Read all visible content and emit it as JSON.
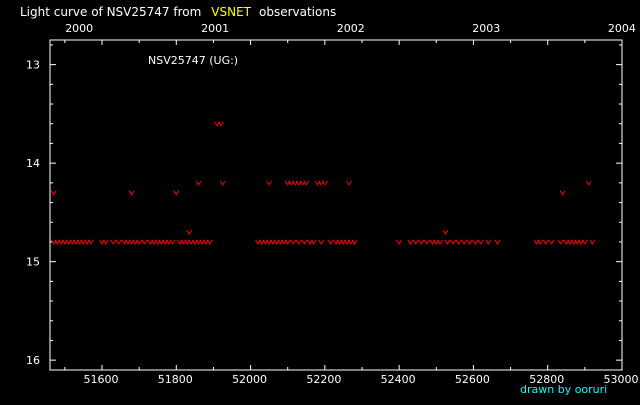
{
  "title": {
    "prefix": "Light curve of NSV25747 from",
    "source": "VSNET",
    "suffix": "observations",
    "source_color": "#ffff00"
  },
  "credit": "drawn by ooruri",
  "colors": {
    "background": "#000000",
    "axes": "#ffffff",
    "text": "#ffffff",
    "points": "#ff0000",
    "credit": "#00ffff"
  },
  "chart_data": {
    "type": "scatter",
    "annotation": "NSV25747 (UG:)",
    "xlim": [
      51460,
      53000
    ],
    "ylim": [
      16.1,
      12.75
    ],
    "y_inverted": true,
    "grid": false,
    "x_ticks": [
      51600,
      51800,
      52000,
      52200,
      52400,
      52600,
      52800,
      53000
    ],
    "y_ticks": [
      13,
      14,
      15,
      16
    ],
    "top_ticks": [
      {
        "label": "2000",
        "x": 51544
      },
      {
        "label": "2001",
        "x": 51910
      },
      {
        "label": "2002",
        "x": 52275
      },
      {
        "label": "2003",
        "x": 52640
      },
      {
        "label": "2004",
        "x": 53005
      }
    ],
    "marker": "v",
    "series": [
      {
        "points": [
          [
            51470,
            14.3
          ],
          [
            51470,
            14.8
          ],
          [
            51480,
            14.8
          ],
          [
            51490,
            14.8
          ],
          [
            51500,
            14.8
          ],
          [
            51510,
            14.8
          ],
          [
            51520,
            14.8
          ],
          [
            51530,
            14.8
          ],
          [
            51540,
            14.8
          ],
          [
            51550,
            14.8
          ],
          [
            51560,
            14.8
          ],
          [
            51570,
            14.8
          ],
          [
            51600,
            14.8
          ],
          [
            51610,
            14.8
          ],
          [
            51630,
            14.8
          ],
          [
            51645,
            14.8
          ],
          [
            51660,
            14.8
          ],
          [
            51670,
            14.8
          ],
          [
            51680,
            14.8
          ],
          [
            51680,
            14.3
          ],
          [
            51690,
            14.8
          ],
          [
            51700,
            14.8
          ],
          [
            51715,
            14.8
          ],
          [
            51730,
            14.8
          ],
          [
            51740,
            14.8
          ],
          [
            51750,
            14.8
          ],
          [
            51760,
            14.8
          ],
          [
            51770,
            14.8
          ],
          [
            51780,
            14.8
          ],
          [
            51790,
            14.8
          ],
          [
            51800,
            14.3
          ],
          [
            51810,
            14.8
          ],
          [
            51820,
            14.8
          ],
          [
            51830,
            14.8
          ],
          [
            51835,
            14.7
          ],
          [
            51840,
            14.8
          ],
          [
            51850,
            14.8
          ],
          [
            51860,
            14.8
          ],
          [
            51860,
            14.2
          ],
          [
            51870,
            14.8
          ],
          [
            51880,
            14.8
          ],
          [
            51890,
            14.8
          ],
          [
            51910,
            13.6
          ],
          [
            51920,
            13.6
          ],
          [
            51925,
            14.2
          ],
          [
            52020,
            14.8
          ],
          [
            52030,
            14.8
          ],
          [
            52040,
            14.8
          ],
          [
            52050,
            14.8
          ],
          [
            52050,
            14.2
          ],
          [
            52060,
            14.8
          ],
          [
            52070,
            14.8
          ],
          [
            52080,
            14.8
          ],
          [
            52090,
            14.8
          ],
          [
            52100,
            14.8
          ],
          [
            52100,
            14.2
          ],
          [
            52110,
            14.2
          ],
          [
            52115,
            14.8
          ],
          [
            52120,
            14.2
          ],
          [
            52130,
            14.8
          ],
          [
            52130,
            14.2
          ],
          [
            52140,
            14.2
          ],
          [
            52145,
            14.8
          ],
          [
            52150,
            14.2
          ],
          [
            52160,
            14.8
          ],
          [
            52170,
            14.8
          ],
          [
            52180,
            14.2
          ],
          [
            52190,
            14.8
          ],
          [
            52190,
            14.2
          ],
          [
            52200,
            14.2
          ],
          [
            52215,
            14.8
          ],
          [
            52230,
            14.8
          ],
          [
            52240,
            14.8
          ],
          [
            52250,
            14.8
          ],
          [
            52260,
            14.8
          ],
          [
            52265,
            14.2
          ],
          [
            52270,
            14.8
          ],
          [
            52280,
            14.8
          ],
          [
            52400,
            14.8
          ],
          [
            52430,
            14.8
          ],
          [
            52445,
            14.8
          ],
          [
            52460,
            14.8
          ],
          [
            52475,
            14.8
          ],
          [
            52490,
            14.8
          ],
          [
            52500,
            14.8
          ],
          [
            52510,
            14.8
          ],
          [
            52525,
            14.7
          ],
          [
            52530,
            14.8
          ],
          [
            52545,
            14.8
          ],
          [
            52560,
            14.8
          ],
          [
            52575,
            14.8
          ],
          [
            52590,
            14.8
          ],
          [
            52605,
            14.8
          ],
          [
            52620,
            14.8
          ],
          [
            52640,
            14.8
          ],
          [
            52665,
            14.8
          ],
          [
            52770,
            14.8
          ],
          [
            52780,
            14.8
          ],
          [
            52795,
            14.8
          ],
          [
            52810,
            14.8
          ],
          [
            52835,
            14.8
          ],
          [
            52840,
            14.3
          ],
          [
            52850,
            14.8
          ],
          [
            52860,
            14.8
          ],
          [
            52870,
            14.8
          ],
          [
            52880,
            14.8
          ],
          [
            52890,
            14.8
          ],
          [
            52900,
            14.8
          ],
          [
            52910,
            14.2
          ],
          [
            52920,
            14.8
          ]
        ]
      }
    ]
  }
}
